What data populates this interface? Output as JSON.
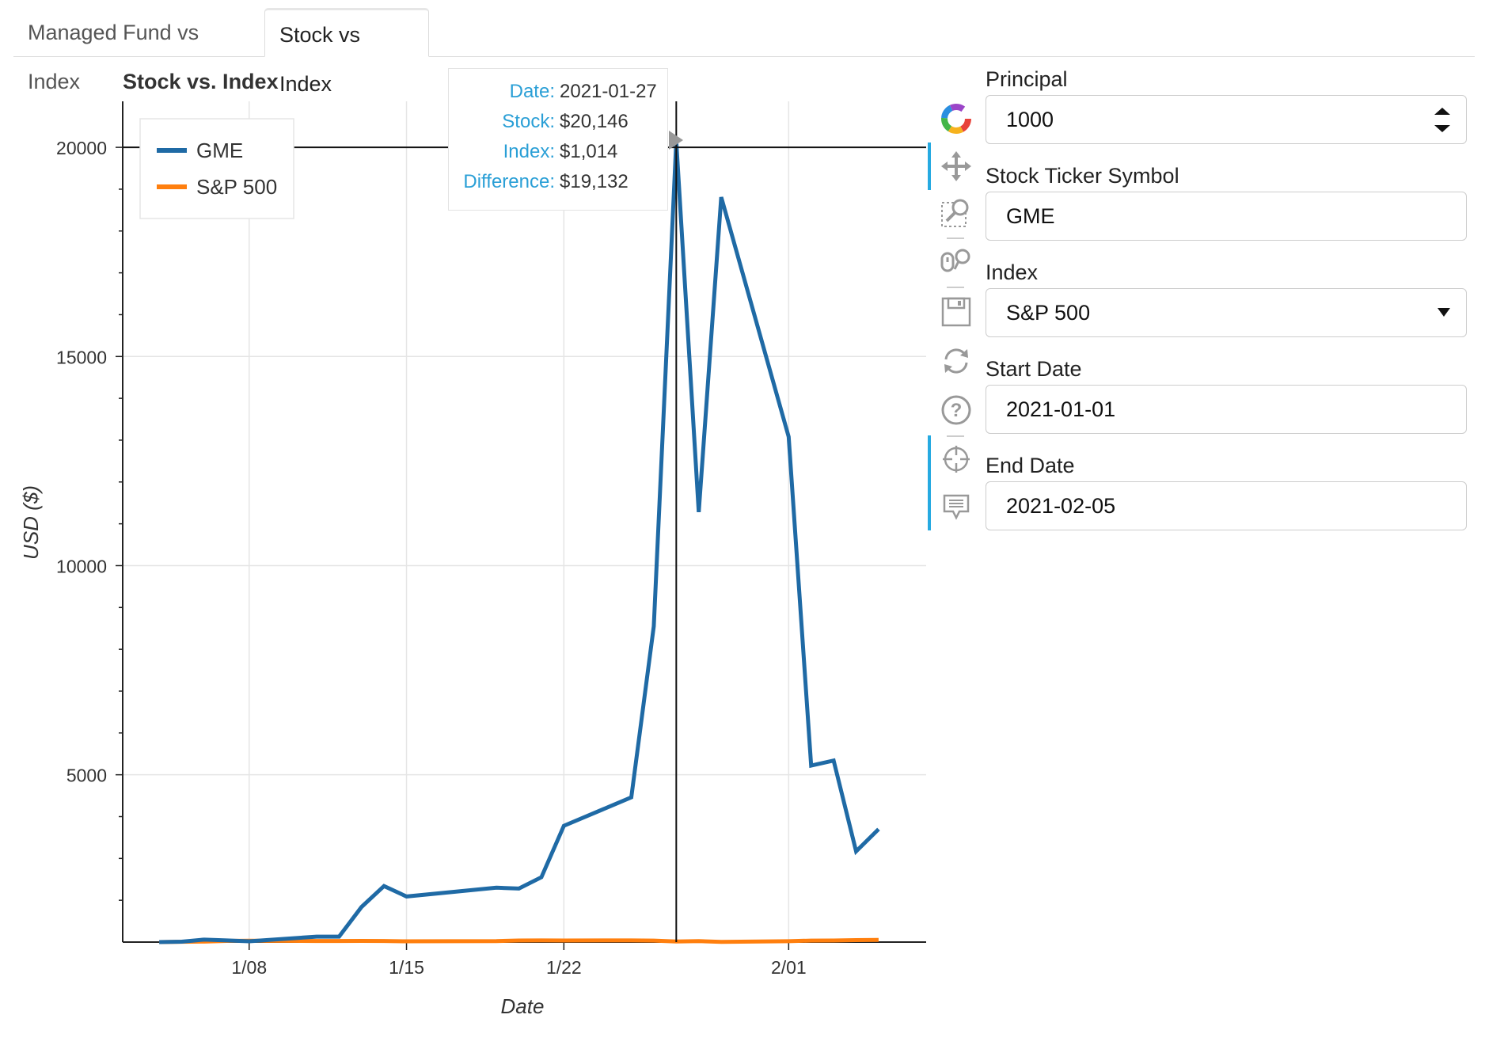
{
  "tabs": [
    {
      "label": "Managed Fund vs Index",
      "active": false
    },
    {
      "label": "Stock vs Index",
      "active": true
    }
  ],
  "plot": {
    "title": "Stock vs. Index"
  },
  "tooltip": {
    "rows": [
      {
        "key": "Date:",
        "value": "2021-01-27"
      },
      {
        "key": "Stock:",
        "value": "$20,146"
      },
      {
        "key": "Index:",
        "value": "$1,014"
      },
      {
        "key": "Difference:",
        "value": "$19,132"
      }
    ]
  },
  "toolbar": {
    "tools": [
      "bokeh-logo-icon",
      "pan-icon",
      "box-zoom-icon",
      "wheel-zoom-icon",
      "save-icon",
      "reset-icon",
      "help-icon",
      "crosshair-icon",
      "hover-icon"
    ]
  },
  "form": {
    "principal_label": "Principal",
    "principal_value": "1000",
    "ticker_label": "Stock Ticker Symbol",
    "ticker_value": "GME",
    "index_label": "Index",
    "index_value": "S&P 500",
    "start_label": "Start Date",
    "start_value": "2021-01-01",
    "end_label": "End Date",
    "end_value": "2021-02-05"
  },
  "colors": {
    "stock": "#1f6aa5",
    "index": "#ff7f0e",
    "accent": "#26aae1"
  },
  "chart_data": {
    "type": "line",
    "title": "Stock vs. Index",
    "xlabel": "Date",
    "ylabel": "USD ($)",
    "x_tick_labels": [
      "1/08",
      "1/15",
      "1/22",
      "2/01"
    ],
    "x_tick_dates": [
      "2021-01-08",
      "2021-01-15",
      "2021-01-22",
      "2021-02-01"
    ],
    "y_ticks": [
      5000,
      10000,
      15000,
      20000
    ],
    "ylim": [
      1000,
      21100
    ],
    "xlim": [
      "2021-01-02 09:00",
      "2021-02-07 07:00"
    ],
    "grid": true,
    "legend_position": "top-left",
    "crosshair": {
      "x": "2021-01-27",
      "y": 20000
    },
    "x": [
      "2021-01-04",
      "2021-01-05",
      "2021-01-06",
      "2021-01-07",
      "2021-01-08",
      "2021-01-11",
      "2021-01-12",
      "2021-01-13",
      "2021-01-14",
      "2021-01-15",
      "2021-01-19",
      "2021-01-20",
      "2021-01-21",
      "2021-01-22",
      "2021-01-25",
      "2021-01-26",
      "2021-01-27",
      "2021-01-28",
      "2021-01-29",
      "2021-02-01",
      "2021-02-02",
      "2021-02-03",
      "2021-02-04",
      "2021-02-05"
    ],
    "series": [
      {
        "name": "GME",
        "values": [
          1000,
          1010,
          1060,
          1040,
          1020,
          1130,
          1130,
          1840,
          2340,
          2090,
          2300,
          2280,
          2550,
          3780,
          4460,
          8550,
          20146,
          11280,
          18810,
          13080,
          5220,
          5340,
          3170,
          3700
        ]
      },
      {
        "name": "S&P 500",
        "values": [
          1000,
          1007,
          1013,
          1028,
          1033,
          1026,
          1026,
          1029,
          1026,
          1018,
          1024,
          1038,
          1041,
          1037,
          1041,
          1036,
          1014,
          1024,
          1005,
          1022,
          1036,
          1037,
          1048,
          1052
        ]
      }
    ]
  }
}
